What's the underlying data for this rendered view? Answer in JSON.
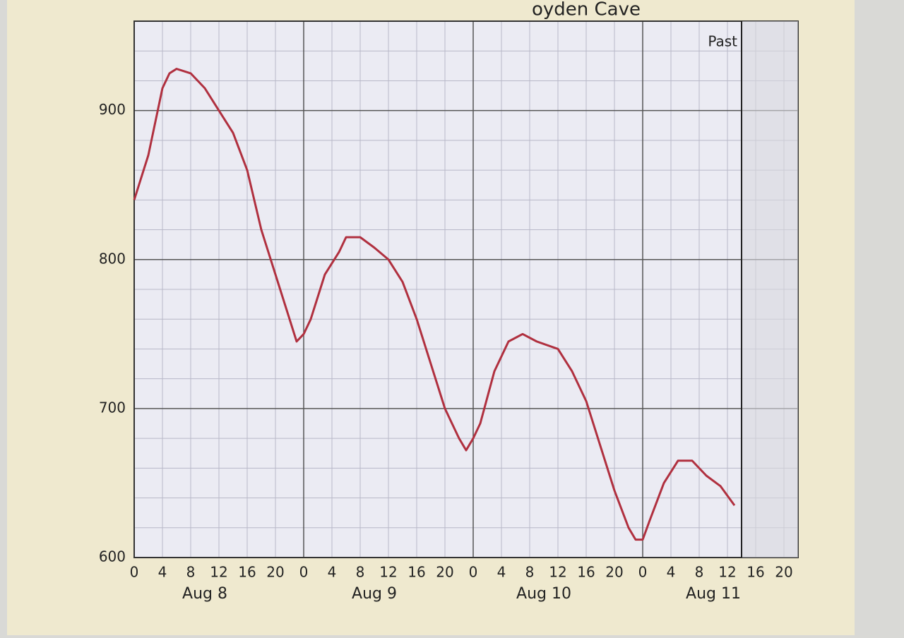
{
  "chart_data": {
    "type": "line",
    "title": "oyden Cave",
    "x": [
      0,
      2,
      4,
      5,
      6,
      8,
      10,
      12,
      14,
      16,
      18,
      20,
      22,
      23,
      24,
      25,
      27,
      29,
      30,
      32,
      34,
      36,
      38,
      40,
      42,
      44,
      46,
      47,
      48,
      49,
      51,
      53,
      55,
      57,
      60,
      62,
      64,
      66,
      68,
      70,
      71,
      72,
      73,
      75,
      77,
      79,
      81,
      83,
      85
    ],
    "series": [
      {
        "color": "#b0303f",
        "values": [
          840,
          870,
          915,
          925,
          928,
          925,
          915,
          900,
          885,
          860,
          820,
          790,
          760,
          745,
          750,
          760,
          790,
          805,
          815,
          815,
          808,
          800,
          785,
          760,
          730,
          700,
          680,
          672,
          680,
          690,
          725,
          745,
          750,
          745,
          740,
          725,
          705,
          675,
          645,
          620,
          612,
          612,
          625,
          650,
          665,
          665,
          655,
          648,
          635
        ]
      }
    ],
    "xlim": [
      0,
      94
    ],
    "xticks": [
      0,
      4,
      8,
      12,
      16,
      20,
      {
        "value": 24,
        "label": "0"
      },
      {
        "value": 28,
        "label": "4"
      },
      {
        "value": 32,
        "label": "8"
      },
      {
        "value": 36,
        "label": "12"
      },
      {
        "value": 40,
        "label": "16"
      },
      {
        "value": 44,
        "label": "20"
      },
      {
        "value": 48,
        "label": "0"
      },
      {
        "value": 52,
        "label": "4"
      },
      {
        "value": 56,
        "label": "8"
      },
      {
        "value": 60,
        "label": "12"
      },
      {
        "value": 64,
        "label": "16"
      },
      {
        "value": 68,
        "label": "20"
      },
      {
        "value": 72,
        "label": "0"
      },
      {
        "value": 76,
        "label": "4"
      },
      {
        "value": 80,
        "label": "8"
      },
      {
        "value": 84,
        "label": "12"
      },
      {
        "value": 88,
        "label": "16"
      },
      {
        "value": 92,
        "label": "20"
      }
    ],
    "day_labels": [
      "Aug 8",
      "Aug 9",
      "Aug 10",
      "Aug 11"
    ],
    "ylim": [
      600,
      960
    ],
    "yticks": [
      600,
      700,
      800,
      900
    ],
    "yminorticks": [
      620,
      640,
      660,
      680,
      720,
      740,
      760,
      780,
      820,
      840,
      860,
      880,
      920,
      940
    ],
    "annotations": [
      {
        "text": "Past",
        "x": 86
      }
    ],
    "grid": true
  }
}
